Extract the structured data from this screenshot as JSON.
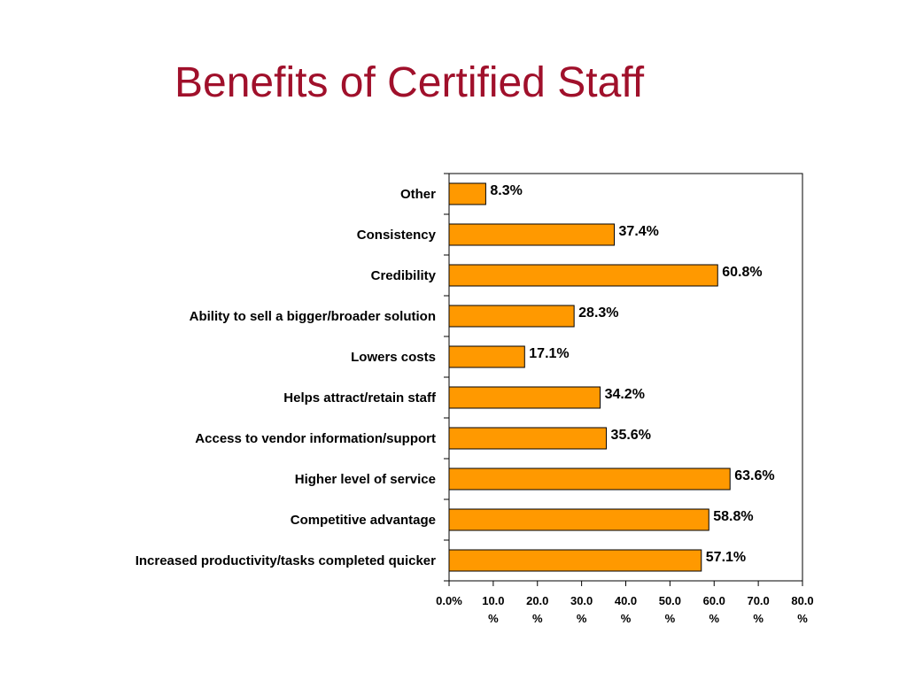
{
  "chart_data": {
    "type": "bar",
    "orientation": "horizontal",
    "title": "Benefits of Certified Staff",
    "categories": [
      "Other",
      "Consistency",
      "Credibility",
      "Ability to sell a bigger/broader solution",
      "Lowers costs",
      "Helps attract/retain staff",
      "Access to vendor information/support",
      "Higher level of service",
      "Competitive advantage",
      "Increased productivity/tasks completed quicker"
    ],
    "values": [
      8.3,
      37.4,
      60.8,
      28.3,
      17.1,
      34.2,
      35.6,
      63.6,
      58.8,
      57.1
    ],
    "data_labels": [
      "8.3%",
      "37.4%",
      "60.8%",
      "28.3%",
      "17.1%",
      "34.2%",
      "35.6%",
      "63.6%",
      "58.8%",
      "57.1%"
    ],
    "xlim": [
      0,
      80
    ],
    "x_ticks": [
      0,
      10,
      20,
      30,
      40,
      50,
      60,
      70,
      80
    ],
    "x_tick_labels": [
      [
        "0.0%"
      ],
      [
        "10.0",
        "%"
      ],
      [
        "20.0",
        "%"
      ],
      [
        "30.0",
        "%"
      ],
      [
        "40.0",
        "%"
      ],
      [
        "50.0",
        "%"
      ],
      [
        "60.0",
        "%"
      ],
      [
        "70.0",
        "%"
      ],
      [
        "80.0",
        "%"
      ]
    ],
    "xlabel": "",
    "ylabel": "",
    "grid": false,
    "legend": "none",
    "bar_color": "#ff9900",
    "title_color": "#a0102b"
  }
}
